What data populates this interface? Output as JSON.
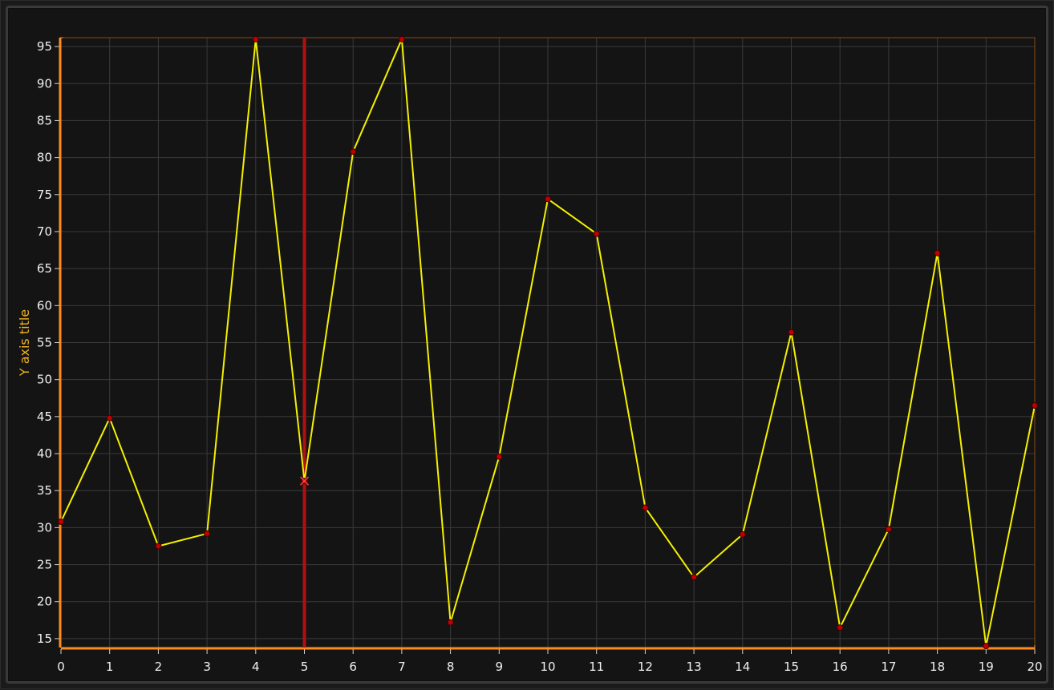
{
  "chart_data": {
    "type": "line",
    "title": "",
    "xlabel": "",
    "ylabel": "Y axis title",
    "xlim": [
      0,
      20
    ],
    "ylim": [
      13.8,
      96.2
    ],
    "x_ticks": [
      "0",
      "1",
      "2",
      "3",
      "4",
      "5",
      "6",
      "7",
      "8",
      "9",
      "10",
      "11",
      "12",
      "13",
      "14",
      "15",
      "16",
      "17",
      "18",
      "19",
      "20"
    ],
    "y_ticks": [
      "15",
      "20",
      "25",
      "30",
      "35",
      "40",
      "45",
      "50",
      "55",
      "60",
      "65",
      "70",
      "75",
      "80",
      "85",
      "90",
      "95"
    ],
    "grid": true,
    "legend": "none",
    "cursor_x": 5,
    "series": [
      {
        "x": [
          0,
          1,
          2,
          3,
          4,
          5,
          6,
          7,
          8,
          9,
          10,
          11,
          12,
          13,
          14,
          15,
          16,
          17,
          18,
          19,
          20
        ],
        "values": [
          30.8,
          44.8,
          27.5,
          29.2,
          96.0,
          36.3,
          80.8,
          96.0,
          17.2,
          39.6,
          74.4,
          69.7,
          32.7,
          23.3,
          29.1,
          56.4,
          16.5,
          29.8,
          67.1,
          14.0,
          46.5
        ]
      }
    ]
  },
  "colors": {
    "line": "#f5f000",
    "marker": "#c00000",
    "cursor": "#b01010",
    "axis": "#ff8c1a",
    "grid": "#3a3a3a",
    "plot_bg": "#141414"
  }
}
